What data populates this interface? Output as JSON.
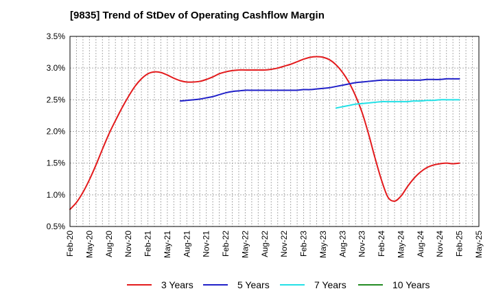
{
  "title": "[9835]  Trend of StDev of Operating Cashflow Margin",
  "chart_data": {
    "type": "line",
    "title": "[9835]  Trend of StDev of Operating Cashflow Margin",
    "xlabel": "",
    "ylabel": "",
    "x_ticks": [
      "Feb-20",
      "May-20",
      "Aug-20",
      "Nov-20",
      "Feb-21",
      "May-21",
      "Aug-21",
      "Nov-21",
      "Feb-22",
      "May-22",
      "Aug-22",
      "Nov-22",
      "Feb-23",
      "May-23",
      "Aug-23",
      "Nov-23",
      "Feb-24",
      "May-24",
      "Aug-24",
      "Nov-24",
      "Feb-25",
      "May-25"
    ],
    "y_ticks": [
      "0.5%",
      "1.0%",
      "1.5%",
      "2.0%",
      "2.5%",
      "3.0%",
      "3.5%"
    ],
    "ylim": [
      0.5,
      3.5
    ],
    "grid": true,
    "legend_position": "bottom",
    "series": [
      {
        "name": "3 Years",
        "color": "#e31a1c",
        "x": [
          "Feb-20",
          "Mar-20",
          "Apr-20",
          "May-20",
          "Jun-20",
          "Jul-20",
          "Aug-20",
          "Sep-20",
          "Oct-20",
          "Nov-20",
          "Dec-20",
          "Jan-21",
          "Feb-21",
          "Mar-21",
          "Apr-21",
          "May-21",
          "Jun-21",
          "Jul-21",
          "Aug-21",
          "Sep-21",
          "Oct-21",
          "Nov-21",
          "Dec-21",
          "Jan-22",
          "Feb-22",
          "Mar-22",
          "Apr-22",
          "May-22",
          "Jun-22",
          "Jul-22",
          "Aug-22",
          "Sep-22",
          "Oct-22",
          "Nov-22",
          "Dec-22",
          "Jan-23",
          "Feb-23",
          "Mar-23",
          "Apr-23",
          "May-23",
          "Jun-23",
          "Jul-23",
          "Aug-23",
          "Sep-23",
          "Oct-23",
          "Nov-23",
          "Dec-23",
          "Jan-24",
          "Feb-24",
          "Mar-24",
          "Apr-24",
          "May-24",
          "Jun-24",
          "Jul-24",
          "Aug-24",
          "Sep-24",
          "Oct-24",
          "Nov-24",
          "Dec-24",
          "Jan-25",
          "Feb-25"
        ],
        "values": [
          0.77,
          0.88,
          1.04,
          1.24,
          1.47,
          1.72,
          1.96,
          2.17,
          2.37,
          2.55,
          2.71,
          2.83,
          2.91,
          2.94,
          2.93,
          2.89,
          2.84,
          2.8,
          2.78,
          2.78,
          2.79,
          2.82,
          2.86,
          2.91,
          2.94,
          2.96,
          2.97,
          2.97,
          2.97,
          2.97,
          2.97,
          2.98,
          3.0,
          3.03,
          3.06,
          3.1,
          3.14,
          3.17,
          3.18,
          3.17,
          3.13,
          3.05,
          2.93,
          2.77,
          2.56,
          2.3,
          1.96,
          1.58,
          1.23,
          0.96,
          0.9,
          0.98,
          1.13,
          1.26,
          1.36,
          1.43,
          1.47,
          1.49,
          1.5,
          1.49,
          1.5
        ]
      },
      {
        "name": "5 Years",
        "color": "#1f1fc8",
        "x": [
          "Jul-21",
          "Aug-21",
          "Sep-21",
          "Oct-21",
          "Nov-21",
          "Dec-21",
          "Jan-22",
          "Feb-22",
          "Mar-22",
          "Apr-22",
          "May-22",
          "Jun-22",
          "Jul-22",
          "Aug-22",
          "Sep-22",
          "Oct-22",
          "Nov-22",
          "Dec-22",
          "Jan-23",
          "Feb-23",
          "Mar-23",
          "Apr-23",
          "May-23",
          "Jun-23",
          "Jul-23",
          "Aug-23",
          "Sep-23",
          "Oct-23",
          "Nov-23",
          "Dec-23",
          "Jan-24",
          "Feb-24",
          "Mar-24",
          "Apr-24",
          "May-24",
          "Jun-24",
          "Jul-24",
          "Aug-24",
          "Sep-24",
          "Oct-24",
          "Nov-24",
          "Dec-24",
          "Jan-25",
          "Feb-25"
        ],
        "values": [
          2.48,
          2.49,
          2.5,
          2.51,
          2.53,
          2.55,
          2.58,
          2.61,
          2.63,
          2.64,
          2.65,
          2.65,
          2.65,
          2.65,
          2.65,
          2.65,
          2.65,
          2.65,
          2.65,
          2.66,
          2.66,
          2.67,
          2.68,
          2.69,
          2.71,
          2.73,
          2.75,
          2.77,
          2.78,
          2.79,
          2.8,
          2.81,
          2.81,
          2.81,
          2.81,
          2.81,
          2.81,
          2.81,
          2.82,
          2.82,
          2.82,
          2.83,
          2.83,
          2.83
        ]
      },
      {
        "name": "7 Years",
        "color": "#22e0e6",
        "x": [
          "Jul-23",
          "Aug-23",
          "Sep-23",
          "Oct-23",
          "Nov-23",
          "Dec-23",
          "Jan-24",
          "Feb-24",
          "Mar-24",
          "Apr-24",
          "May-24",
          "Jun-24",
          "Jul-24",
          "Aug-24",
          "Sep-24",
          "Oct-24",
          "Nov-24",
          "Dec-24",
          "Jan-25",
          "Feb-25"
        ],
        "values": [
          2.37,
          2.39,
          2.41,
          2.43,
          2.44,
          2.45,
          2.46,
          2.47,
          2.47,
          2.47,
          2.47,
          2.47,
          2.48,
          2.48,
          2.49,
          2.49,
          2.5,
          2.5,
          2.5,
          2.5
        ]
      },
      {
        "name": "10 Years",
        "color": "#228b22",
        "x": [],
        "values": []
      }
    ]
  }
}
